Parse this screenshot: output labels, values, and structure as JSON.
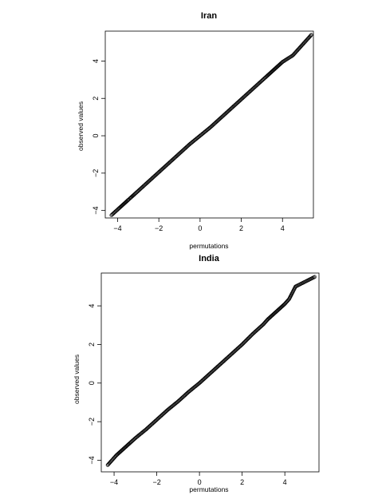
{
  "chart_data": [
    {
      "type": "scatter",
      "title": "Iran",
      "xlabel": "permutations",
      "ylabel": "observed values",
      "xlim": [
        -4.6,
        5.5
      ],
      "ylim": [
        -4.4,
        5.6
      ],
      "xticks": [
        -4,
        -2,
        0,
        2,
        4
      ],
      "yticks": [
        -4,
        -2,
        0,
        2,
        4
      ],
      "xtick_labels": [
        "−4",
        "−2",
        "0",
        "2",
        "4"
      ],
      "ytick_labels": [
        "−4",
        "−2",
        "0",
        "2",
        "4"
      ],
      "grid": false,
      "series": [
        {
          "x": [
            -4.3,
            -4.1,
            -3.95,
            -3.85,
            -3.75,
            -3.65,
            -3.55,
            -3.45,
            -3.4,
            -3.3,
            -3.2,
            -3.0,
            -2.5,
            -2.0,
            -1.5,
            -1.0,
            -0.5,
            0.0,
            0.5,
            1.0,
            1.5,
            2.0,
            2.5,
            3.0,
            3.2,
            3.3,
            3.4,
            3.5,
            3.6,
            3.7,
            3.8,
            3.9,
            4.0,
            4.5,
            5.4
          ],
          "y": [
            -4.25,
            -4.05,
            -3.9,
            -3.8,
            -3.7,
            -3.6,
            -3.5,
            -3.4,
            -3.35,
            -3.25,
            -3.15,
            -2.95,
            -2.45,
            -1.95,
            -1.45,
            -0.95,
            -0.45,
            0.0,
            0.45,
            0.95,
            1.45,
            1.95,
            2.45,
            2.95,
            3.15,
            3.25,
            3.35,
            3.45,
            3.55,
            3.65,
            3.75,
            3.85,
            3.95,
            4.3,
            5.4
          ]
        }
      ]
    },
    {
      "type": "scatter",
      "title": "India",
      "xlabel": "permutations",
      "ylabel": "observed values",
      "xlim": [
        -4.6,
        5.6
      ],
      "ylim": [
        -4.6,
        5.7
      ],
      "xticks": [
        -4,
        -2,
        0,
        2,
        4
      ],
      "yticks": [
        -4,
        -2,
        0,
        2,
        4
      ],
      "xtick_labels": [
        "−4",
        "−2",
        "0",
        "2",
        "4"
      ],
      "ytick_labels": [
        "−4",
        "−2",
        "0",
        "2",
        "4"
      ],
      "grid": false,
      "series": [
        {
          "x": [
            -4.3,
            -4.1,
            -3.9,
            -3.8,
            -3.7,
            -3.6,
            -3.5,
            -3.4,
            -3.3,
            -3.2,
            -3.0,
            -2.5,
            -2.0,
            -1.5,
            -1.0,
            -0.5,
            0.0,
            0.5,
            1.0,
            1.5,
            2.0,
            2.5,
            3.0,
            3.2,
            3.3,
            3.4,
            3.5,
            3.6,
            3.7,
            3.8,
            3.9,
            4.0,
            4.2,
            4.5,
            5.4
          ],
          "y": [
            -4.25,
            -4.0,
            -3.75,
            -3.65,
            -3.55,
            -3.45,
            -3.35,
            -3.25,
            -3.15,
            -3.05,
            -2.85,
            -2.4,
            -1.9,
            -1.4,
            -0.95,
            -0.45,
            0.0,
            0.5,
            1.0,
            1.5,
            2.0,
            2.55,
            3.05,
            3.3,
            3.4,
            3.5,
            3.6,
            3.7,
            3.8,
            3.9,
            4.0,
            4.1,
            4.35,
            5.0,
            5.5
          ]
        }
      ]
    }
  ]
}
